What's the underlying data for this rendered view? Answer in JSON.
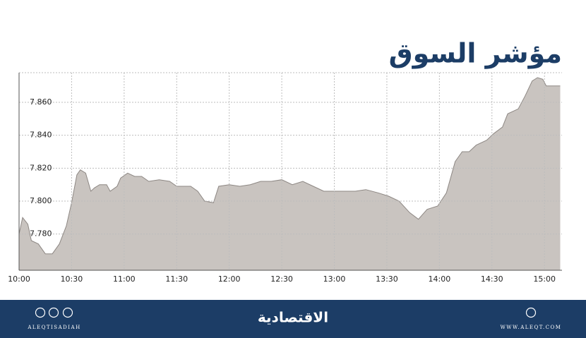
{
  "chart_data": {
    "type": "area",
    "title": "مؤشر السوق",
    "x": [
      0,
      2,
      5,
      7,
      11,
      15,
      19,
      23,
      27,
      30,
      33,
      35,
      38,
      41,
      43,
      46,
      50,
      52,
      56,
      58,
      62,
      66,
      70,
      74,
      80,
      86,
      90,
      98,
      102,
      106,
      111,
      114,
      120,
      126,
      132,
      138,
      144,
      150,
      156,
      162,
      168,
      174,
      180,
      186,
      192,
      198,
      205,
      211,
      217,
      223,
      228,
      233,
      239,
      244,
      249,
      253,
      257,
      261,
      267,
      271,
      276,
      279,
      285,
      289,
      293,
      296,
      299,
      301,
      309
    ],
    "values": [
      7.78,
      7.79,
      7.786,
      7.776,
      7.774,
      7.768,
      7.768,
      7.774,
      7.785,
      7.799,
      7.816,
      7.819,
      7.817,
      7.806,
      7.808,
      7.81,
      7.81,
      7.806,
      7.809,
      7.814,
      7.817,
      7.815,
      7.815,
      7.812,
      7.813,
      7.812,
      7.809,
      7.809,
      7.806,
      7.8,
      7.799,
      7.809,
      7.81,
      7.809,
      7.81,
      7.812,
      7.812,
      7.813,
      7.81,
      7.812,
      7.809,
      7.806,
      7.806,
      7.806,
      7.806,
      7.807,
      7.805,
      7.803,
      7.8,
      7.793,
      7.789,
      7.795,
      7.797,
      7.805,
      7.824,
      7.83,
      7.83,
      7.834,
      7.837,
      7.841,
      7.845,
      7.853,
      7.856,
      7.864,
      7.873,
      7.875,
      7.874,
      7.87,
      7.87
    ],
    "color": "#c9c4c0",
    "line_color": "#8d8783",
    "xlim": [
      0,
      310
    ],
    "xticks": [
      {
        "value": 0,
        "label": "10:00"
      },
      {
        "value": 30,
        "label": "10:30"
      },
      {
        "value": 60,
        "label": "11:00"
      },
      {
        "value": 90,
        "label": "11:30"
      },
      {
        "value": 120,
        "label": "12:00"
      },
      {
        "value": 150,
        "label": "12:30"
      },
      {
        "value": 180,
        "label": "13:00"
      },
      {
        "value": 210,
        "label": "13:30"
      },
      {
        "value": 240,
        "label": "14:00"
      },
      {
        "value": 270,
        "label": "14:30"
      },
      {
        "value": 300,
        "label": "15:00"
      }
    ],
    "ylim": [
      7.758,
      7.878
    ],
    "yticks": [
      {
        "value": 7.78,
        "label": "7.780"
      },
      {
        "value": 7.8,
        "label": "7.800"
      },
      {
        "value": 7.82,
        "label": "7.820"
      },
      {
        "value": 7.84,
        "label": "7.840"
      },
      {
        "value": 7.86,
        "label": "7.860"
      }
    ],
    "grid": true
  },
  "footer": {
    "left": "ALEQTISADIAH",
    "center": "الاقتصادية",
    "right": "WWW.ALEQT.COM"
  }
}
